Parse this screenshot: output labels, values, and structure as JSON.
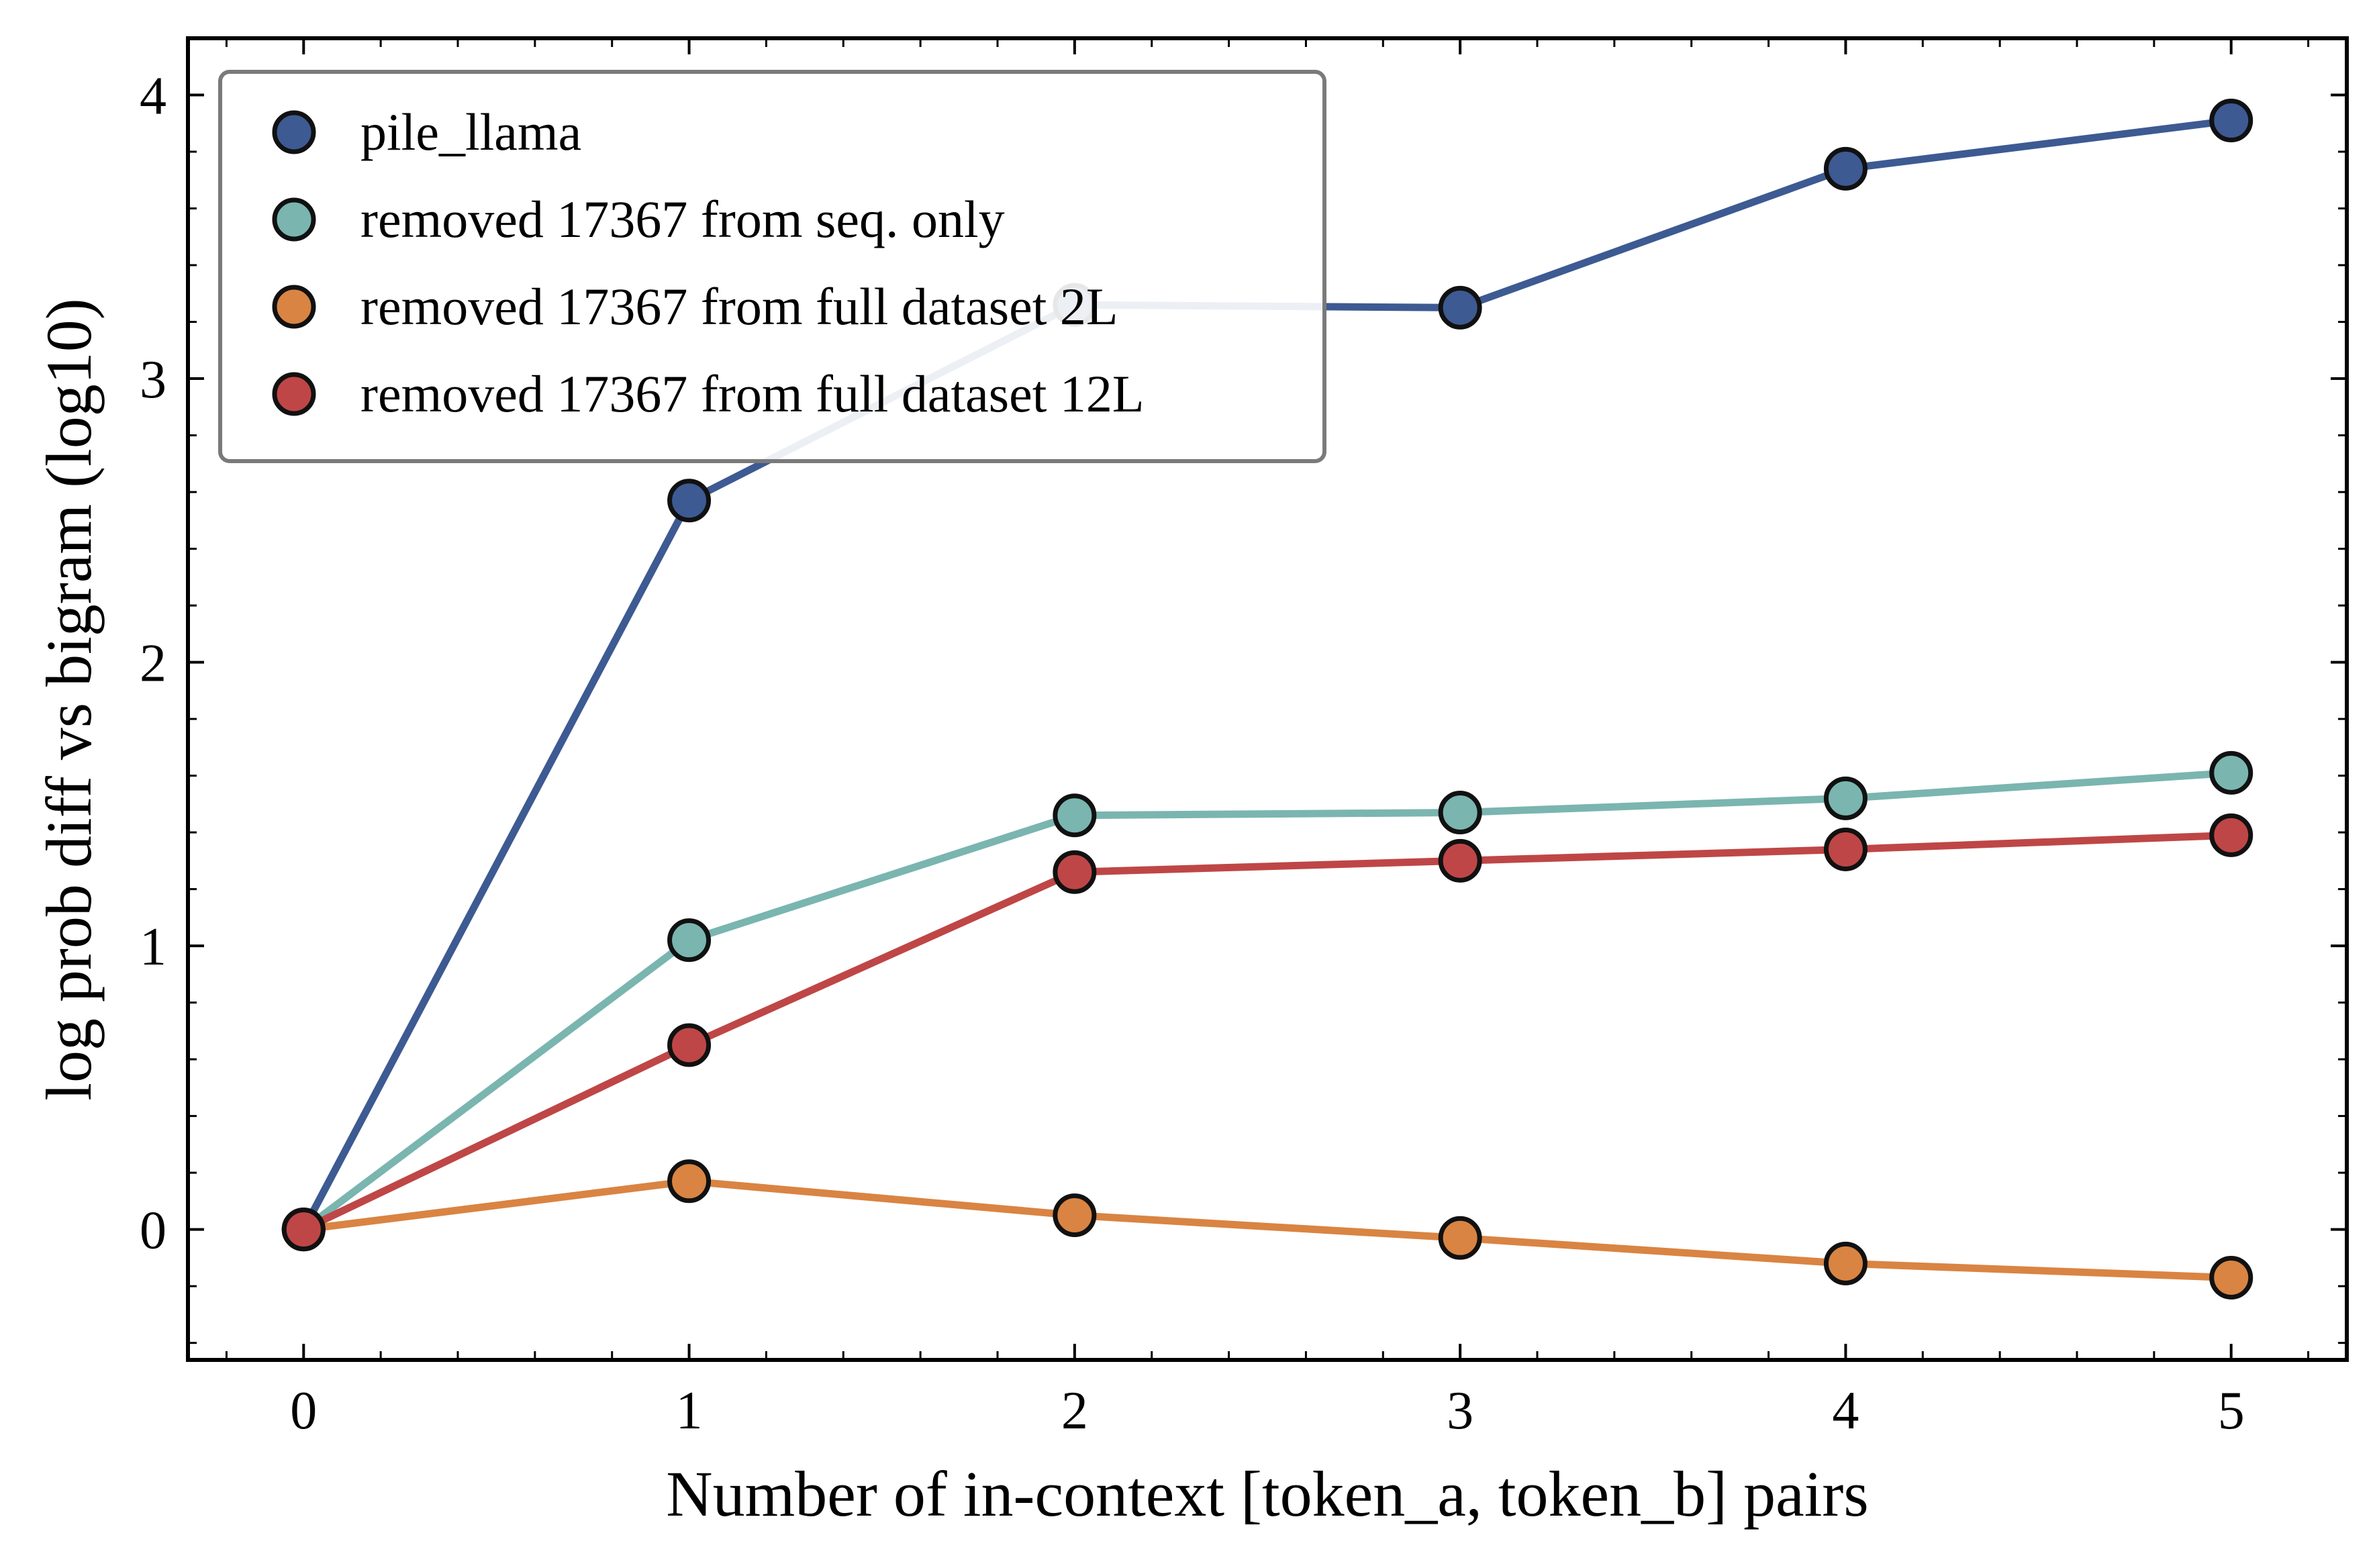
{
  "chart_data": {
    "type": "line",
    "title": "",
    "xlabel": "Number of in-context [token_a, token_b] pairs",
    "ylabel": "log prob diff vs bigram (log10)",
    "x": [
      0,
      1,
      2,
      3,
      4,
      5
    ],
    "xlim": [
      -0.3,
      5.3
    ],
    "ylim": [
      -0.46,
      4.2
    ],
    "xticks": [
      0,
      1,
      2,
      3,
      4,
      5
    ],
    "yticks": [
      0,
      1,
      2,
      3,
      4
    ],
    "grid": false,
    "legend_position": "top-left",
    "series": [
      {
        "name": "pile_llama",
        "color": "#3d5a92",
        "values": [
          0.0,
          2.57,
          3.26,
          3.25,
          3.74,
          3.91
        ]
      },
      {
        "name": "removed 17367 from seq. only",
        "color": "#7ab5b0",
        "values": [
          0.0,
          1.02,
          1.46,
          1.47,
          1.52,
          1.61
        ]
      },
      {
        "name": "removed 17367 from full dataset 2L",
        "color": "#d98442",
        "values": [
          0.0,
          0.17,
          0.05,
          -0.03,
          -0.12,
          -0.17
        ]
      },
      {
        "name": "removed 17367 from full dataset 12L",
        "color": "#bf4646",
        "values": [
          0.0,
          0.65,
          1.26,
          1.3,
          1.34,
          1.39
        ]
      }
    ]
  }
}
